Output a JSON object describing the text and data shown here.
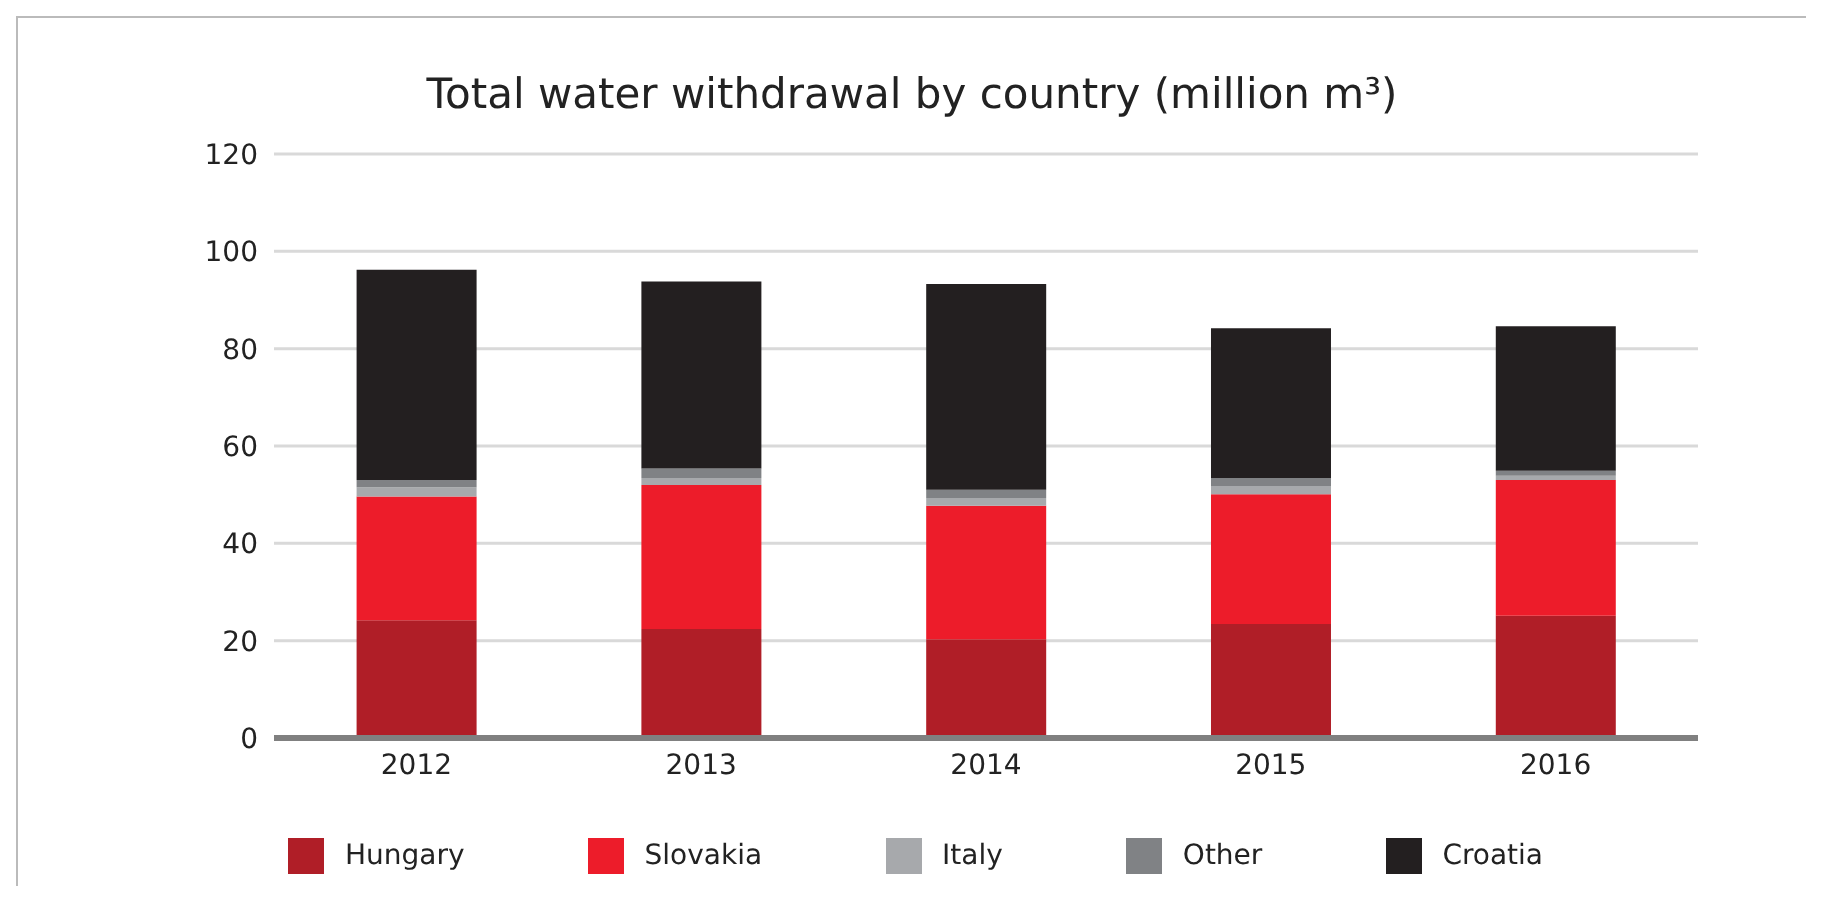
{
  "chart_data": {
    "type": "bar",
    "title": "Total water withdrawal by country (million m³)",
    "categories": [
      "2012",
      "2013",
      "2014",
      "2015",
      "2016"
    ],
    "stacked": true,
    "series": [
      {
        "name": "Hungary",
        "color": "#b01e27",
        "values": [
          24.2,
          22.4,
          20.3,
          23.4,
          25.1
        ]
      },
      {
        "name": "Slovakia",
        "color": "#ed1c2a",
        "values": [
          25.4,
          29.6,
          27.4,
          26.7,
          27.9
        ]
      },
      {
        "name": "Italy",
        "color": "#a7a9ac",
        "values": [
          1.9,
          1.4,
          1.6,
          1.7,
          0.9
        ]
      },
      {
        "name": "Other",
        "color": "#808285",
        "values": [
          1.5,
          2.0,
          1.7,
          1.6,
          1.0
        ]
      },
      {
        "name": "Croatia",
        "color": "#231f20",
        "values": [
          43.2,
          38.4,
          42.3,
          30.8,
          29.7
        ]
      }
    ],
    "ylim": [
      0,
      120
    ],
    "yticks": [
      0,
      20,
      40,
      60,
      80,
      100,
      120
    ],
    "grid": "y",
    "legend": "bottom"
  }
}
